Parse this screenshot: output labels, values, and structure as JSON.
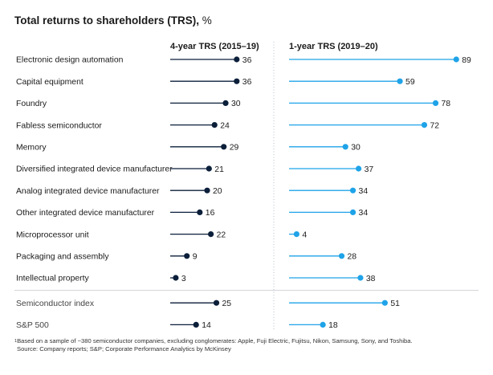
{
  "title": {
    "bold": "Total returns to shareholders (TRS),",
    "unit": "%"
  },
  "colors": {
    "left_series": "#0b1f3a",
    "right_series": "#1fa3e8",
    "divider": "#cfd3d8",
    "dotted": "#b8bec6"
  },
  "chart_data": {
    "type": "lollipop",
    "title": "Total returns to shareholders (TRS), %",
    "categories": [
      "Electronic design automation",
      "Capital equipment",
      "Foundry",
      "Fabless semiconductor",
      "Memory",
      "Diversified integrated device manufacturer",
      "Analog integrated device manufacturer",
      "Other integrated device manufacturer",
      "Microprocessor unit",
      "Packaging and assembly",
      "Intellectual property",
      "Semiconductor index",
      "S&P 500"
    ],
    "series": [
      {
        "name": "4-year TRS (2015–19)",
        "values": [
          36,
          36,
          30,
          24,
          29,
          21,
          20,
          16,
          22,
          9,
          3,
          25,
          14
        ]
      },
      {
        "name": "1-year TRS (2019–20)",
        "values": [
          89,
          59,
          78,
          72,
          30,
          37,
          34,
          34,
          4,
          28,
          38,
          51,
          18
        ]
      }
    ],
    "index_categories": [
      "Semiconductor index",
      "S&P 500"
    ],
    "xlim": [
      0,
      90
    ]
  },
  "footnote": {
    "marker": "1",
    "line1": "Based on a sample of ~380 semiconductor companies, excluding conglomerates: Apple, Fuji Electric, Fujitsu, Nikon, Samsung, Sony, and Toshiba.",
    "line2": "Source: Company reports; S&P; Corporate Performance Analytics by McKinsey"
  }
}
